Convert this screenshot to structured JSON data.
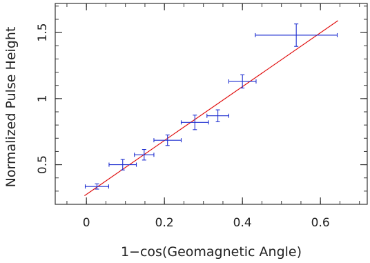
{
  "chart_data": {
    "type": "scatter",
    "xlabel": "1−cos(Geomagnetic Angle)",
    "ylabel": "Normalized Pulse Height",
    "xlim": [
      -0.08,
      0.72
    ],
    "ylim": [
      0.2,
      1.72
    ],
    "x_ticks": [
      0,
      0.2,
      0.4,
      0.6
    ],
    "x_tick_labels": [
      "0",
      "0.2",
      "0.4",
      "0.6"
    ],
    "y_ticks": [
      0.5,
      1,
      1.5
    ],
    "y_tick_labels": [
      "0.5",
      "1",
      "1.5"
    ],
    "x_minor_step": 0.05,
    "y_minor_step": 0.1,
    "grid": false,
    "series": [
      {
        "kind": "errorbar",
        "color": "#1f2fd0",
        "points": [
          {
            "x": 0.027,
            "y": 0.335,
            "xerr": 0.03,
            "yerr": 0.02
          },
          {
            "x": 0.093,
            "y": 0.5,
            "xerr": 0.035,
            "yerr": 0.04
          },
          {
            "x": 0.148,
            "y": 0.575,
            "xerr": 0.025,
            "yerr": 0.04
          },
          {
            "x": 0.208,
            "y": 0.685,
            "xerr": 0.035,
            "yerr": 0.04
          },
          {
            "x": 0.278,
            "y": 0.82,
            "xerr": 0.035,
            "yerr": 0.055
          },
          {
            "x": 0.337,
            "y": 0.87,
            "xerr": 0.028,
            "yerr": 0.045
          },
          {
            "x": 0.4,
            "y": 1.13,
            "xerr": 0.035,
            "yerr": 0.05
          },
          {
            "x": 0.538,
            "y": 1.48,
            "xerr": 0.105,
            "yerr": 0.085
          }
        ]
      },
      {
        "kind": "fit_line",
        "color": "#e01010",
        "x": [
          -0.005,
          0.645
        ],
        "y": [
          0.265,
          1.59
        ]
      }
    ]
  }
}
